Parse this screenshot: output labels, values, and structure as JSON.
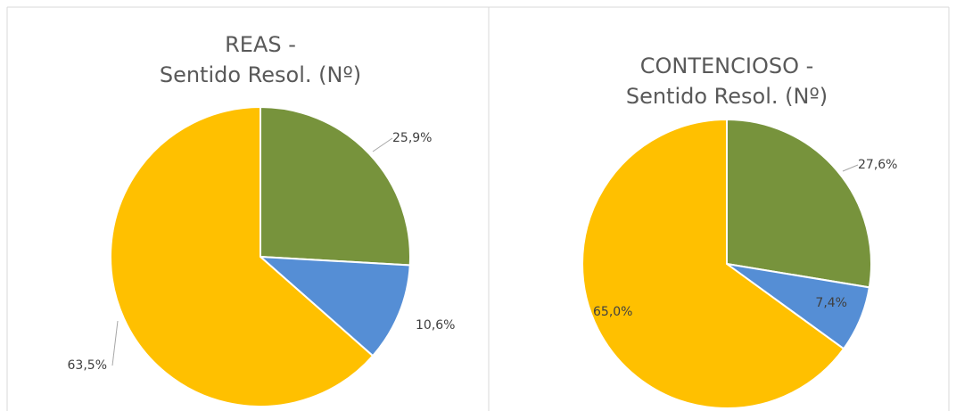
{
  "chart_data": [
    {
      "type": "pie",
      "title": [
        "REAS -",
        "Sentido Resol. (Nº)"
      ],
      "values": [
        25.9,
        10.6,
        63.5
      ],
      "value_labels": [
        "25,9%",
        "10,6%",
        "63,5%"
      ],
      "colors": [
        "#77933c",
        "#558ed5",
        "#ffc000"
      ]
    },
    {
      "type": "pie",
      "title": [
        "CONTENCIOSO -",
        "Sentido Resol. (Nº)"
      ],
      "values": [
        27.6,
        7.4,
        65.0
      ],
      "value_labels": [
        "27,6%",
        "7,4%",
        "65,0%"
      ],
      "colors": [
        "#77933c",
        "#558ed5",
        "#ffc000"
      ]
    }
  ]
}
